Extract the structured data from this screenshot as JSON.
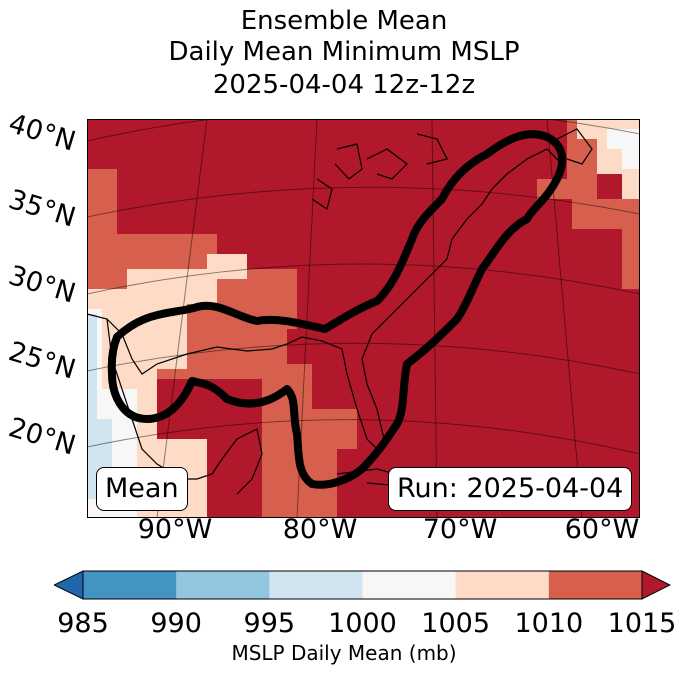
{
  "title": {
    "line1": "Ensemble Mean",
    "line2": "Daily Mean Minimum MSLP",
    "line3": "2025-04-04 12z-12z"
  },
  "map": {
    "latitude_labels": [
      "40°N",
      "35°N",
      "30°N",
      "25°N",
      "20°N"
    ],
    "longitude_labels": [
      "90°W",
      "80°W",
      "70°W",
      "60°W"
    ],
    "mean_box": "Mean",
    "run_box": "Run: 2025-04-04",
    "ocean_color": "#b2182b",
    "contour_color": "#000000"
  },
  "colorbar": {
    "label": "MSLP Daily Mean (mb)",
    "ticks": [
      "985",
      "990",
      "995",
      "1000",
      "1005",
      "1010",
      "1015"
    ],
    "bins": [
      {
        "range": "985-990",
        "color": "#4393c3"
      },
      {
        "range": "990-995",
        "color": "#92c5de"
      },
      {
        "range": "995-1000",
        "color": "#d1e5f0"
      },
      {
        "range": "1000-1005",
        "color": "#f7f7f7"
      },
      {
        "range": "1005-1010",
        "color": "#fddbc7"
      },
      {
        "range": "1010-1015",
        "color": "#d6604d"
      }
    ],
    "under_color": "#2166ac",
    "over_color": "#b2182b"
  }
}
